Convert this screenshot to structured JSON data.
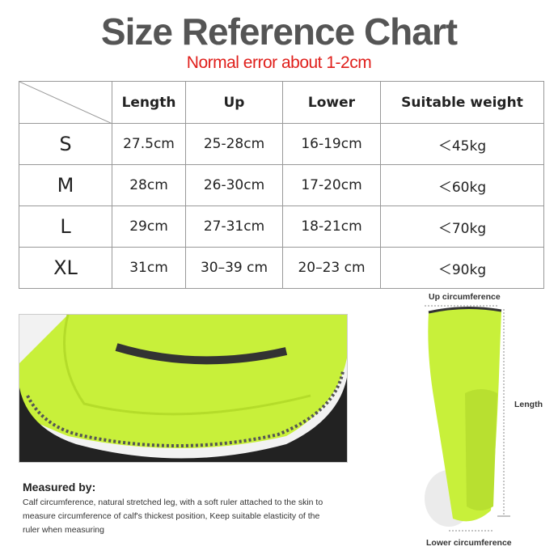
{
  "title": "Size Reference Chart",
  "subtitle": "Normal error about 1-2cm",
  "table": {
    "headers": [
      "",
      "Length",
      "Up",
      "Lower",
      "Suitable weight"
    ],
    "rows": [
      [
        "S",
        "27.5cm",
        "25-28cm",
        "16-19cm",
        "＜45kg"
      ],
      [
        "M",
        "28cm",
        "26-30cm",
        "17-20cm",
        "＜60kg"
      ],
      [
        "L",
        "29cm",
        "27-31cm",
        "18-21cm",
        "＜70kg"
      ],
      [
        "XL",
        "31cm",
        "30–39 cm",
        "20–23 cm",
        "＜90kg"
      ]
    ]
  },
  "measure": {
    "heading": "Measured by:",
    "text": "Calf circumference, natural stretched leg, with a soft ruler attached to the skin to measure circumference of calf's thickest position, Keep suitable elasticity of the ruler when measuring"
  },
  "diagram": {
    "up": "Up circumference",
    "length": "Length",
    "lower": "Lower circumference"
  },
  "colors": {
    "product": "#c8f03a",
    "title": "#555555",
    "subtitle": "#e0201c"
  }
}
